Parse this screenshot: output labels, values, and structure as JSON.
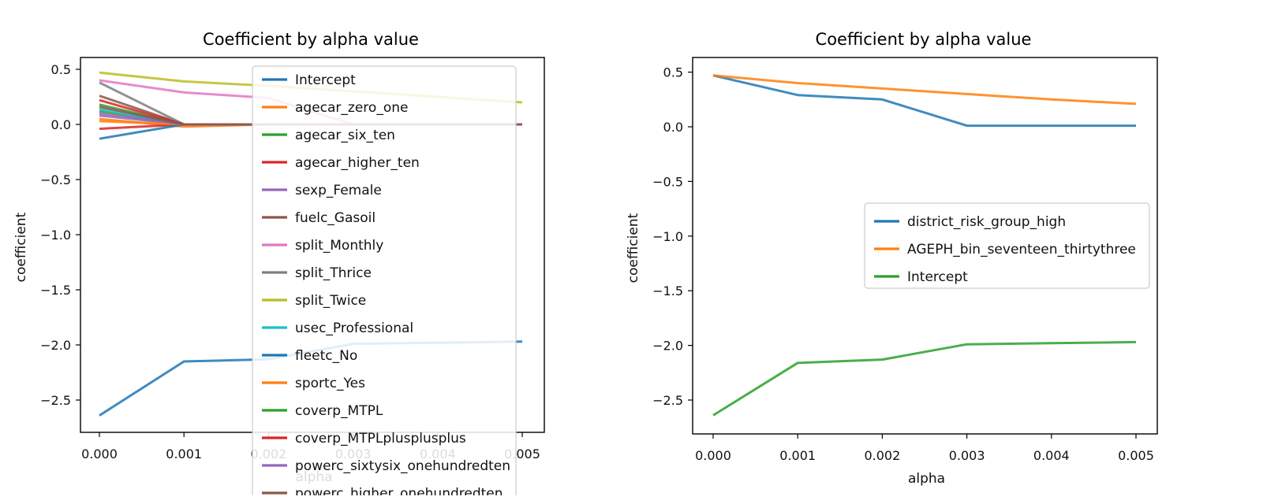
{
  "chart_data": [
    {
      "type": "line",
      "title": "Coefficient by alpha value",
      "xlabel": "alpha",
      "ylabel": "coefficient",
      "xlim": [
        0,
        0.005
      ],
      "ylim": [
        -2.8,
        0.62
      ],
      "xticks": [
        "0.000",
        "0.001",
        "0.002",
        "0.003",
        "0.004",
        "0.005"
      ],
      "yticks": [
        "0.5",
        "0.0",
        "−0.5",
        "−1.0",
        "−1.5",
        "−2.0",
        "−2.5"
      ],
      "x": [
        0.0,
        0.001,
        0.002,
        0.003,
        0.004,
        0.005
      ],
      "legend_position": "top-right",
      "series": [
        {
          "name": "Intercept",
          "color": "#1f77b4",
          "values": [
            -2.64,
            -2.15,
            -2.13,
            -1.99,
            -1.98,
            -1.97
          ]
        },
        {
          "name": "agecar_zero_one",
          "color": "#ff7f0e",
          "values": [
            0.05,
            -0.02,
            0.0,
            0.0,
            0.0,
            0.0
          ]
        },
        {
          "name": "agecar_six_ten",
          "color": "#2ca02c",
          "values": [
            0.12,
            0.0,
            0.0,
            0.0,
            0.0,
            0.0
          ]
        },
        {
          "name": "agecar_higher_ten",
          "color": "#d62728",
          "values": [
            -0.04,
            0.0,
            0.0,
            0.0,
            0.0,
            0.0
          ]
        },
        {
          "name": "sexp_Female",
          "color": "#9467bd",
          "values": [
            0.08,
            0.0,
            0.0,
            0.0,
            0.0,
            0.0
          ]
        },
        {
          "name": "fuelc_Gasoil",
          "color": "#8c564b",
          "values": [
            0.26,
            0.0,
            0.0,
            0.0,
            0.0,
            0.0
          ]
        },
        {
          "name": "split_Monthly",
          "color": "#e377c2",
          "values": [
            0.4,
            0.29,
            0.24,
            0.0,
            0.0,
            0.0
          ]
        },
        {
          "name": "split_Thrice",
          "color": "#7f7f7f",
          "values": [
            0.38,
            0.0,
            0.0,
            0.0,
            0.0,
            0.0
          ]
        },
        {
          "name": "split_Twice",
          "color": "#bcbd22",
          "values": [
            0.47,
            0.39,
            0.35,
            0.3,
            0.25,
            0.2
          ]
        },
        {
          "name": "usec_Professional",
          "color": "#17becf",
          "values": [
            0.14,
            0.0,
            0.0,
            0.0,
            0.0,
            0.0
          ]
        },
        {
          "name": "fleetc_No",
          "color": "#1f77b4",
          "values": [
            -0.13,
            0.0,
            0.0,
            0.0,
            0.0,
            0.0
          ]
        },
        {
          "name": "sportc_Yes",
          "color": "#ff7f0e",
          "values": [
            0.03,
            0.0,
            0.0,
            0.0,
            0.0,
            0.0
          ]
        },
        {
          "name": "coverp_MTPL",
          "color": "#2ca02c",
          "values": [
            0.18,
            0.0,
            0.0,
            0.0,
            0.0,
            0.0
          ]
        },
        {
          "name": "coverp_MTPLplusplusplus",
          "color": "#d62728",
          "values": [
            0.22,
            0.0,
            0.0,
            0.0,
            0.0,
            0.0
          ]
        },
        {
          "name": "powerc_sixtysix_onehundredten",
          "color": "#9467bd",
          "values": [
            0.1,
            0.0,
            0.0,
            0.0,
            0.0,
            0.0
          ]
        },
        {
          "name": "powerc_higher_onehundredten",
          "color": "#8c564b",
          "values": [
            0.16,
            0.0,
            0.0,
            0.0,
            0.0,
            0.0
          ]
        }
      ]
    },
    {
      "type": "line",
      "title": "Coefficient by alpha value",
      "xlabel": "alpha",
      "ylabel": "coefficient",
      "xlim": [
        0,
        0.005
      ],
      "ylim": [
        -2.8,
        0.62
      ],
      "xticks": [
        "0.000",
        "0.001",
        "0.002",
        "0.003",
        "0.004",
        "0.005"
      ],
      "yticks": [
        "0.5",
        "0.0",
        "−0.5",
        "−1.0",
        "−1.5",
        "−2.0",
        "−2.5"
      ],
      "x": [
        0.0,
        0.001,
        0.002,
        0.003,
        0.004,
        0.005
      ],
      "legend_position": "center-right",
      "series": [
        {
          "name": "district_risk_group_high",
          "color": "#1f77b4",
          "values": [
            0.47,
            0.29,
            0.25,
            0.01,
            0.01,
            0.01
          ]
        },
        {
          "name": "AGEPH_bin_seventeen_thirtythree",
          "color": "#ff7f0e",
          "values": [
            0.47,
            0.4,
            0.35,
            0.3,
            0.25,
            0.21
          ]
        },
        {
          "name": "Intercept",
          "color": "#2ca02c",
          "values": [
            -2.64,
            -2.16,
            -2.13,
            -1.99,
            -1.98,
            -1.97
          ]
        }
      ]
    }
  ]
}
